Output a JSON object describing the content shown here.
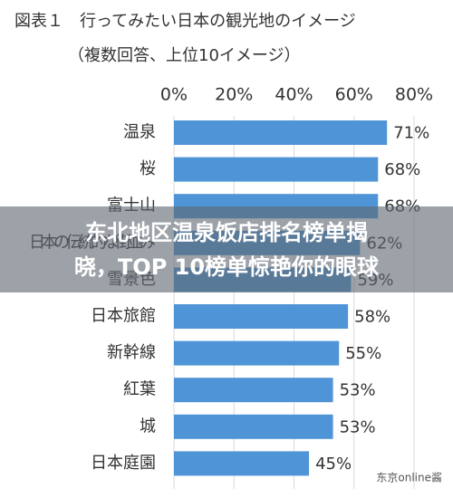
{
  "chart_data": {
    "type": "bar",
    "orientation": "horizontal",
    "title": "図表１　行ってみたい日本の観光地のイメージ",
    "subtitle": "（複数回答、上位10イメージ）",
    "categories": [
      "温泉",
      "桜",
      "富士山",
      "日本の伝統的な街並み",
      "雪景色",
      "日本旅館",
      "新幹線",
      "紅葉",
      "城",
      "日本庭園"
    ],
    "values": [
      71,
      68,
      68,
      62,
      59,
      58,
      55,
      53,
      53,
      45
    ],
    "value_labels": [
      "71%",
      "68%",
      "68%",
      "62%",
      "59%",
      "58%",
      "55%",
      "53%",
      "53%",
      "45%"
    ],
    "color": "#4f94d6",
    "xlim": [
      0,
      80
    ],
    "xticks": [
      {
        "value": 0,
        "label": "0%"
      },
      {
        "value": 20,
        "label": "20%"
      },
      {
        "value": 40,
        "label": "40%"
      },
      {
        "value": 60,
        "label": "60%"
      },
      {
        "value": 80,
        "label": "80%"
      }
    ],
    "grid": true
  },
  "banner": {
    "lines": [
      "东北地区温泉饭店排名榜单揭",
      "晓，TOP 10榜单惊艳你的眼球"
    ]
  },
  "watermark": "东京online酱"
}
